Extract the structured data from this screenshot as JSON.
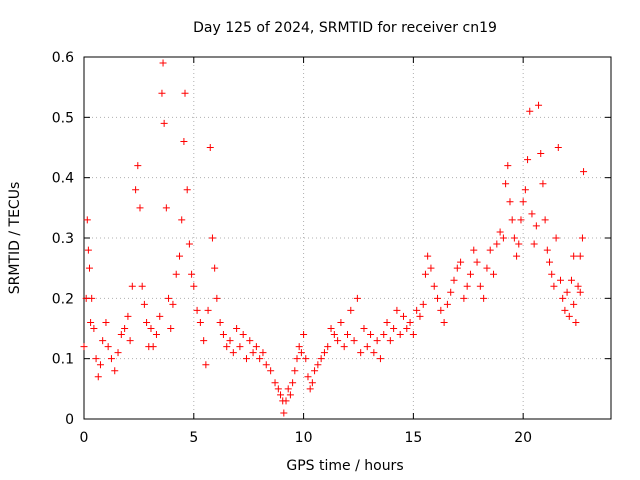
{
  "chart_data": {
    "type": "scatter",
    "title": "Day 125 of 2024, SRMTID for receiver cn19",
    "xlabel": "GPS time / hours",
    "ylabel": "SRMTID / TECUs",
    "xlim": [
      0,
      24
    ],
    "ylim": [
      0,
      0.6
    ],
    "x_ticks": [
      0,
      5,
      10,
      15,
      20
    ],
    "y_ticks": [
      0,
      0.1,
      0.2,
      0.3,
      0.4,
      0.5,
      0.6
    ],
    "x_tick_labels": [
      "0",
      "5",
      "10",
      "15",
      "20"
    ],
    "y_tick_labels": [
      "0",
      "0.1",
      "0.2",
      "0.3",
      "0.4",
      "0.5",
      "0.6"
    ],
    "grid": true,
    "marker": "+",
    "color": "#ff0000",
    "series": [
      {
        "name": "SRMTID",
        "points": [
          [
            0.0,
            0.12
          ],
          [
            0.1,
            0.2
          ],
          [
            0.15,
            0.33
          ],
          [
            0.2,
            0.28
          ],
          [
            0.25,
            0.25
          ],
          [
            0.3,
            0.16
          ],
          [
            0.35,
            0.2
          ],
          [
            0.45,
            0.15
          ],
          [
            0.55,
            0.1
          ],
          [
            0.65,
            0.07
          ],
          [
            0.75,
            0.09
          ],
          [
            0.85,
            0.13
          ],
          [
            1.0,
            0.16
          ],
          [
            1.1,
            0.12
          ],
          [
            1.25,
            0.1
          ],
          [
            1.4,
            0.08
          ],
          [
            1.55,
            0.11
          ],
          [
            1.7,
            0.14
          ],
          [
            1.85,
            0.15
          ],
          [
            2.0,
            0.17
          ],
          [
            2.1,
            0.13
          ],
          [
            2.2,
            0.22
          ],
          [
            2.35,
            0.38
          ],
          [
            2.45,
            0.42
          ],
          [
            2.55,
            0.35
          ],
          [
            2.65,
            0.22
          ],
          [
            2.75,
            0.19
          ],
          [
            2.85,
            0.16
          ],
          [
            2.95,
            0.12
          ],
          [
            3.05,
            0.15
          ],
          [
            3.15,
            0.12
          ],
          [
            3.3,
            0.14
          ],
          [
            3.45,
            0.17
          ],
          [
            3.55,
            0.54
          ],
          [
            3.6,
            0.59
          ],
          [
            3.65,
            0.49
          ],
          [
            3.75,
            0.35
          ],
          [
            3.85,
            0.2
          ],
          [
            3.95,
            0.15
          ],
          [
            4.05,
            0.19
          ],
          [
            4.2,
            0.24
          ],
          [
            4.35,
            0.27
          ],
          [
            4.45,
            0.33
          ],
          [
            4.55,
            0.46
          ],
          [
            4.6,
            0.54
          ],
          [
            4.7,
            0.38
          ],
          [
            4.8,
            0.29
          ],
          [
            4.9,
            0.24
          ],
          [
            5.0,
            0.22
          ],
          [
            5.15,
            0.18
          ],
          [
            5.3,
            0.16
          ],
          [
            5.45,
            0.13
          ],
          [
            5.55,
            0.09
          ],
          [
            5.65,
            0.18
          ],
          [
            5.75,
            0.45
          ],
          [
            5.85,
            0.3
          ],
          [
            5.95,
            0.25
          ],
          [
            6.05,
            0.2
          ],
          [
            6.2,
            0.16
          ],
          [
            6.35,
            0.14
          ],
          [
            6.5,
            0.12
          ],
          [
            6.65,
            0.13
          ],
          [
            6.8,
            0.11
          ],
          [
            6.95,
            0.15
          ],
          [
            7.1,
            0.12
          ],
          [
            7.25,
            0.14
          ],
          [
            7.4,
            0.1
          ],
          [
            7.55,
            0.13
          ],
          [
            7.7,
            0.11
          ],
          [
            7.85,
            0.12
          ],
          [
            8.0,
            0.1
          ],
          [
            8.15,
            0.11
          ],
          [
            8.3,
            0.09
          ],
          [
            8.5,
            0.08
          ],
          [
            8.7,
            0.06
          ],
          [
            8.85,
            0.05
          ],
          [
            8.95,
            0.04
          ],
          [
            9.05,
            0.03
          ],
          [
            9.1,
            0.01
          ],
          [
            9.2,
            0.03
          ],
          [
            9.3,
            0.05
          ],
          [
            9.4,
            0.04
          ],
          [
            9.5,
            0.06
          ],
          [
            9.6,
            0.08
          ],
          [
            9.7,
            0.1
          ],
          [
            9.8,
            0.12
          ],
          [
            9.9,
            0.11
          ],
          [
            10.0,
            0.14
          ],
          [
            10.1,
            0.1
          ],
          [
            10.2,
            0.07
          ],
          [
            10.3,
            0.05
          ],
          [
            10.4,
            0.06
          ],
          [
            10.5,
            0.08
          ],
          [
            10.65,
            0.09
          ],
          [
            10.8,
            0.1
          ],
          [
            10.95,
            0.11
          ],
          [
            11.1,
            0.12
          ],
          [
            11.25,
            0.15
          ],
          [
            11.4,
            0.14
          ],
          [
            11.55,
            0.13
          ],
          [
            11.7,
            0.16
          ],
          [
            11.85,
            0.12
          ],
          [
            12.0,
            0.14
          ],
          [
            12.15,
            0.18
          ],
          [
            12.3,
            0.13
          ],
          [
            12.45,
            0.2
          ],
          [
            12.6,
            0.11
          ],
          [
            12.75,
            0.15
          ],
          [
            12.9,
            0.12
          ],
          [
            13.05,
            0.14
          ],
          [
            13.2,
            0.11
          ],
          [
            13.35,
            0.13
          ],
          [
            13.5,
            0.1
          ],
          [
            13.65,
            0.14
          ],
          [
            13.8,
            0.16
          ],
          [
            13.95,
            0.13
          ],
          [
            14.1,
            0.15
          ],
          [
            14.25,
            0.18
          ],
          [
            14.4,
            0.14
          ],
          [
            14.55,
            0.17
          ],
          [
            14.7,
            0.15
          ],
          [
            14.85,
            0.16
          ],
          [
            15.0,
            0.14
          ],
          [
            15.15,
            0.18
          ],
          [
            15.3,
            0.17
          ],
          [
            15.45,
            0.19
          ],
          [
            15.55,
            0.24
          ],
          [
            15.65,
            0.27
          ],
          [
            15.8,
            0.25
          ],
          [
            15.95,
            0.22
          ],
          [
            16.1,
            0.2
          ],
          [
            16.25,
            0.18
          ],
          [
            16.4,
            0.16
          ],
          [
            16.55,
            0.19
          ],
          [
            16.7,
            0.21
          ],
          [
            16.85,
            0.23
          ],
          [
            17.0,
            0.25
          ],
          [
            17.15,
            0.26
          ],
          [
            17.3,
            0.2
          ],
          [
            17.45,
            0.22
          ],
          [
            17.6,
            0.24
          ],
          [
            17.75,
            0.28
          ],
          [
            17.9,
            0.26
          ],
          [
            18.05,
            0.22
          ],
          [
            18.2,
            0.2
          ],
          [
            18.35,
            0.25
          ],
          [
            18.5,
            0.28
          ],
          [
            18.65,
            0.24
          ],
          [
            18.8,
            0.29
          ],
          [
            18.95,
            0.31
          ],
          [
            19.1,
            0.3
          ],
          [
            19.2,
            0.39
          ],
          [
            19.3,
            0.42
          ],
          [
            19.4,
            0.36
          ],
          [
            19.5,
            0.33
          ],
          [
            19.6,
            0.3
          ],
          [
            19.7,
            0.27
          ],
          [
            19.8,
            0.29
          ],
          [
            19.9,
            0.33
          ],
          [
            20.0,
            0.36
          ],
          [
            20.1,
            0.38
          ],
          [
            20.2,
            0.43
          ],
          [
            20.3,
            0.51
          ],
          [
            20.4,
            0.34
          ],
          [
            20.5,
            0.29
          ],
          [
            20.6,
            0.32
          ],
          [
            20.7,
            0.52
          ],
          [
            20.8,
            0.44
          ],
          [
            20.9,
            0.39
          ],
          [
            21.0,
            0.33
          ],
          [
            21.1,
            0.28
          ],
          [
            21.2,
            0.26
          ],
          [
            21.3,
            0.24
          ],
          [
            21.4,
            0.22
          ],
          [
            21.5,
            0.3
          ],
          [
            21.6,
            0.45
          ],
          [
            21.7,
            0.23
          ],
          [
            21.8,
            0.2
          ],
          [
            21.9,
            0.18
          ],
          [
            22.0,
            0.21
          ],
          [
            22.1,
            0.17
          ],
          [
            22.2,
            0.23
          ],
          [
            22.3,
            0.19
          ],
          [
            22.4,
            0.16
          ],
          [
            22.5,
            0.22
          ],
          [
            22.6,
            0.27
          ],
          [
            22.7,
            0.3
          ],
          [
            22.75,
            0.41
          ],
          [
            22.6,
            0.21
          ],
          [
            22.3,
            0.27
          ]
        ]
      }
    ]
  }
}
